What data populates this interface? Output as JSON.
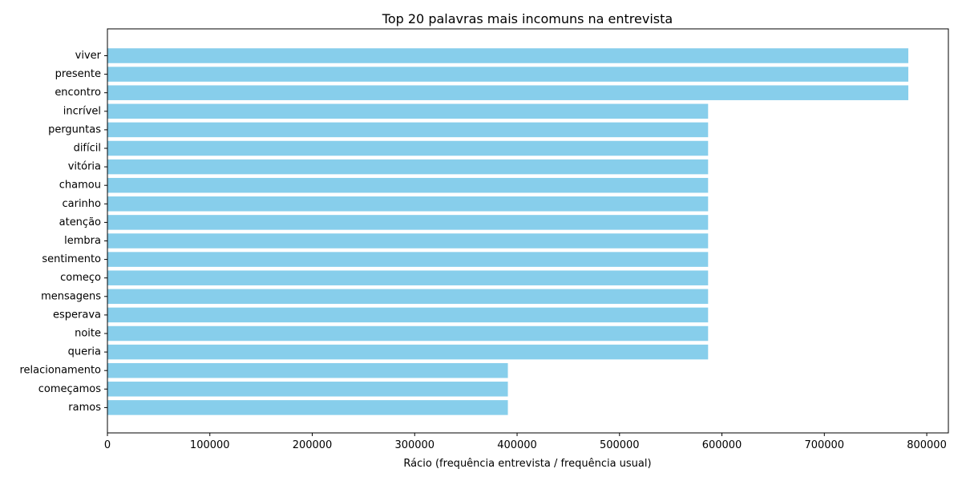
{
  "chart_data": {
    "type": "bar",
    "orientation": "horizontal",
    "title": "Top 20 palavras mais incomuns na entrevista",
    "xlabel": "Rácio (frequência entrevista / frequência usual)",
    "ylabel": "",
    "categories": [
      "viver",
      "presente",
      "encontro",
      "incrível",
      "perguntas",
      "difícil",
      "vitória",
      "chamou",
      "carinho",
      "atenção",
      "lembra",
      "sentimento",
      "começo",
      "mensagens",
      "esperava",
      "noite",
      "queria",
      "relacionamento",
      "começamos",
      "ramos"
    ],
    "values": [
      782000,
      782000,
      782000,
      586500,
      586500,
      586500,
      586500,
      586500,
      586500,
      586500,
      586500,
      586500,
      586500,
      586500,
      586500,
      586500,
      586500,
      391000,
      391000,
      391000
    ],
    "xlim": [
      0,
      821100
    ],
    "xticks": [
      0,
      100000,
      200000,
      300000,
      400000,
      500000,
      600000,
      700000,
      800000
    ],
    "xtick_labels": [
      "0",
      "100000",
      "200000",
      "300000",
      "400000",
      "500000",
      "600000",
      "700000",
      "800000"
    ],
    "bar_color": "#87ceeb",
    "grid": false,
    "legend": "none"
  }
}
